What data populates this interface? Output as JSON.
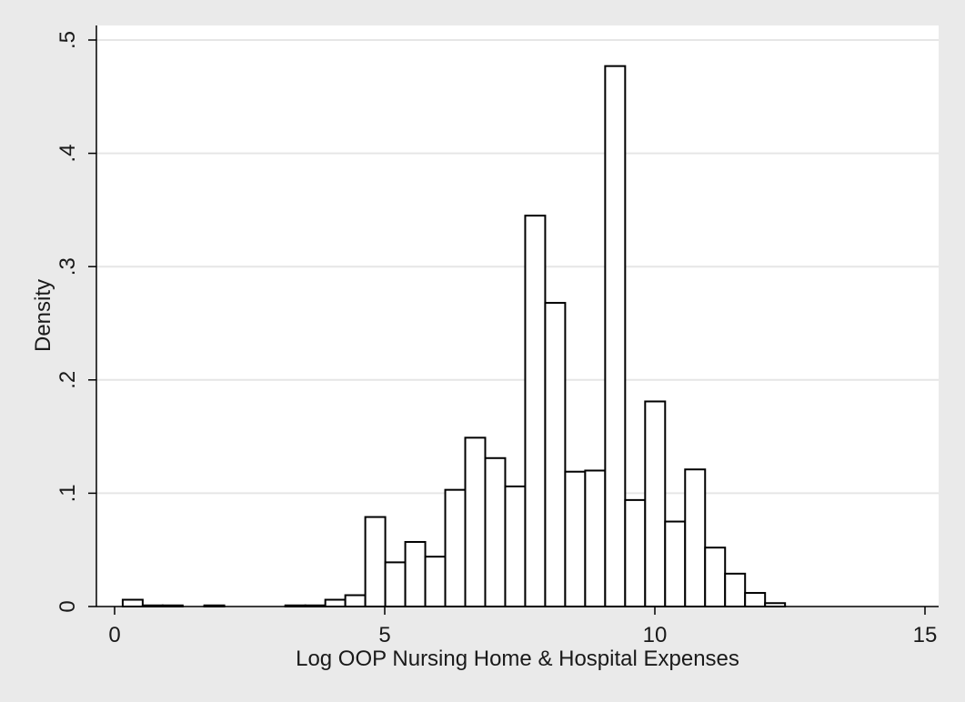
{
  "chart_data": {
    "type": "bar",
    "title": "",
    "xlabel": "Log OOP Nursing Home & Hospital Expenses",
    "ylabel": "Density",
    "xlim": [
      -0.4,
      15.3
    ],
    "ylim": [
      0,
      0.5
    ],
    "grid": true,
    "legend": "none",
    "x_ticks": [
      {
        "value": 0,
        "label": "0"
      },
      {
        "value": 5,
        "label": "5"
      },
      {
        "value": 10,
        "label": "10"
      },
      {
        "value": 15,
        "label": "15"
      }
    ],
    "y_ticks": [
      {
        "value": 0,
        "label": "0"
      },
      {
        "value": 0.1,
        "label": ".1"
      },
      {
        "value": 0.2,
        "label": ".2"
      },
      {
        "value": 0.3,
        "label": ".3"
      },
      {
        "value": 0.4,
        "label": ".4"
      },
      {
        "value": 0.5,
        "label": ".5"
      }
    ],
    "bin_width": 0.37,
    "bins": [
      {
        "x0": 0.15,
        "value": 0.006
      },
      {
        "x0": 0.52,
        "value": 0.001
      },
      {
        "x0": 0.89,
        "value": 0.001
      },
      {
        "x0": 1.66,
        "value": 0.001
      },
      {
        "x0": 3.16,
        "value": 0.001
      },
      {
        "x0": 3.53,
        "value": 0.001
      },
      {
        "x0": 3.9,
        "value": 0.006
      },
      {
        "x0": 4.27,
        "value": 0.01
      },
      {
        "x0": 4.64,
        "value": 0.079
      },
      {
        "x0": 5.01,
        "value": 0.039
      },
      {
        "x0": 5.38,
        "value": 0.057
      },
      {
        "x0": 5.75,
        "value": 0.044
      },
      {
        "x0": 6.12,
        "value": 0.103
      },
      {
        "x0": 6.49,
        "value": 0.149
      },
      {
        "x0": 6.86,
        "value": 0.131
      },
      {
        "x0": 7.23,
        "value": 0.106
      },
      {
        "x0": 7.6,
        "value": 0.345
      },
      {
        "x0": 7.97,
        "value": 0.268
      },
      {
        "x0": 8.34,
        "value": 0.119
      },
      {
        "x0": 8.71,
        "value": 0.12
      },
      {
        "x0": 9.08,
        "value": 0.477
      },
      {
        "x0": 9.45,
        "value": 0.094
      },
      {
        "x0": 9.82,
        "value": 0.181
      },
      {
        "x0": 10.19,
        "value": 0.075
      },
      {
        "x0": 10.56,
        "value": 0.121
      },
      {
        "x0": 10.93,
        "value": 0.052
      },
      {
        "x0": 11.3,
        "value": 0.029
      },
      {
        "x0": 11.67,
        "value": 0.012
      },
      {
        "x0": 12.04,
        "value": 0.003
      }
    ]
  },
  "colors": {
    "background": "#eaeaea",
    "plot_background": "#ffffff",
    "bar_fill": "#ffffff",
    "bar_stroke": "#000000",
    "grid": "#e6e6e6",
    "axis": "#000000"
  }
}
